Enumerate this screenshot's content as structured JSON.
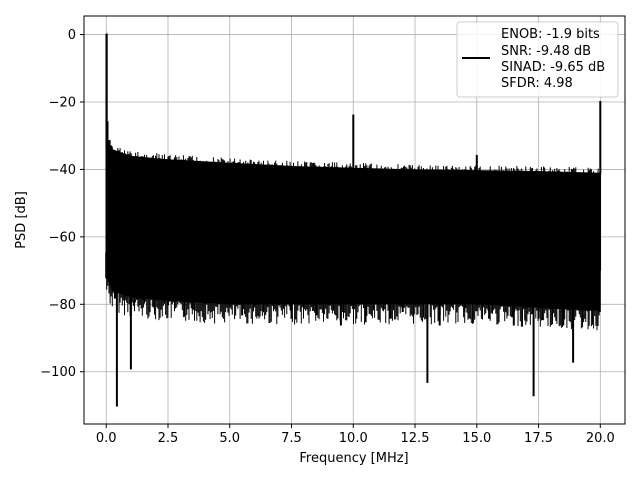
{
  "chart_data": {
    "type": "line",
    "title": "",
    "xlabel": "Frequency [MHz]",
    "ylabel": "PSD [dB]",
    "xlim": [
      -0.9,
      21.0
    ],
    "ylim": [
      -115.5,
      5.5
    ],
    "xticks": [
      0.0,
      2.5,
      5.0,
      7.5,
      10.0,
      12.5,
      15.0,
      17.5,
      20.0
    ],
    "xtick_labels": [
      "0.0",
      "2.5",
      "5.0",
      "7.5",
      "10.0",
      "12.5",
      "15.0",
      "17.5",
      "20.0"
    ],
    "yticks": [
      0,
      -20,
      -40,
      -60,
      -80,
      -100
    ],
    "ytick_labels": [
      "0",
      "−20",
      "−40",
      "−60",
      "−80",
      "−100"
    ],
    "grid": true,
    "legend_position": "upper right",
    "legend_entries": [
      "ENOB: -1.9 bits",
      "SNR: -9.48 dB",
      "SINAD: -9.65 dB",
      "SFDR: 4.98"
    ],
    "line_color": "#000000",
    "series": [
      {
        "x": [
          0.0,
          0.02,
          0.05,
          0.1,
          0.2,
          0.35,
          0.43,
          0.5,
          0.75,
          1.0,
          1.25,
          1.5,
          2.0,
          2.5,
          3.0,
          3.5,
          4.0,
          4.5,
          5.0,
          5.5,
          6.0,
          6.5,
          7.0,
          7.5,
          8.0,
          8.5,
          9.0,
          9.5,
          9.98,
          10.0,
          10.02,
          10.5,
          11.0,
          11.5,
          12.0,
          12.5,
          13.0,
          13.5,
          14.0,
          14.5,
          14.98,
          15.0,
          15.02,
          15.5,
          16.0,
          16.5,
          17.0,
          17.3,
          17.5,
          18.0,
          18.5,
          18.9,
          19.5,
          19.98,
          20.0
        ],
        "y": [
          -65,
          0,
          -26,
          -33,
          -45,
          -78,
          -110,
          -52,
          -70,
          -99,
          -55,
          -78,
          -62,
          -80,
          -68,
          -81,
          -75,
          -79,
          -66,
          -83,
          -70,
          -80,
          -78,
          -84,
          -70,
          -83,
          -72,
          -86,
          -60,
          -24,
          -68,
          -85,
          -79,
          -84,
          -82,
          -80,
          -103,
          -86,
          -78,
          -82,
          -65,
          -36,
          -70,
          -84,
          -80,
          -86,
          -79,
          -107,
          -84,
          -80,
          -86,
          -97,
          -78,
          -70,
          -20
        ]
      }
    ],
    "noise_band": {
      "x": [
        0.0,
        0.25,
        1.0,
        2.5,
        5.0,
        7.5,
        10.0,
        12.5,
        15.0,
        17.5,
        20.0
      ],
      "upper": [
        -30,
        -34,
        -36,
        -37,
        -38,
        -39,
        -39.5,
        -40,
        -40.2,
        -40.5,
        -41
      ],
      "lower": [
        -72,
        -76,
        -78,
        -79,
        -80,
        -80,
        -80,
        -80,
        -80,
        -81,
        -82
      ]
    }
  }
}
